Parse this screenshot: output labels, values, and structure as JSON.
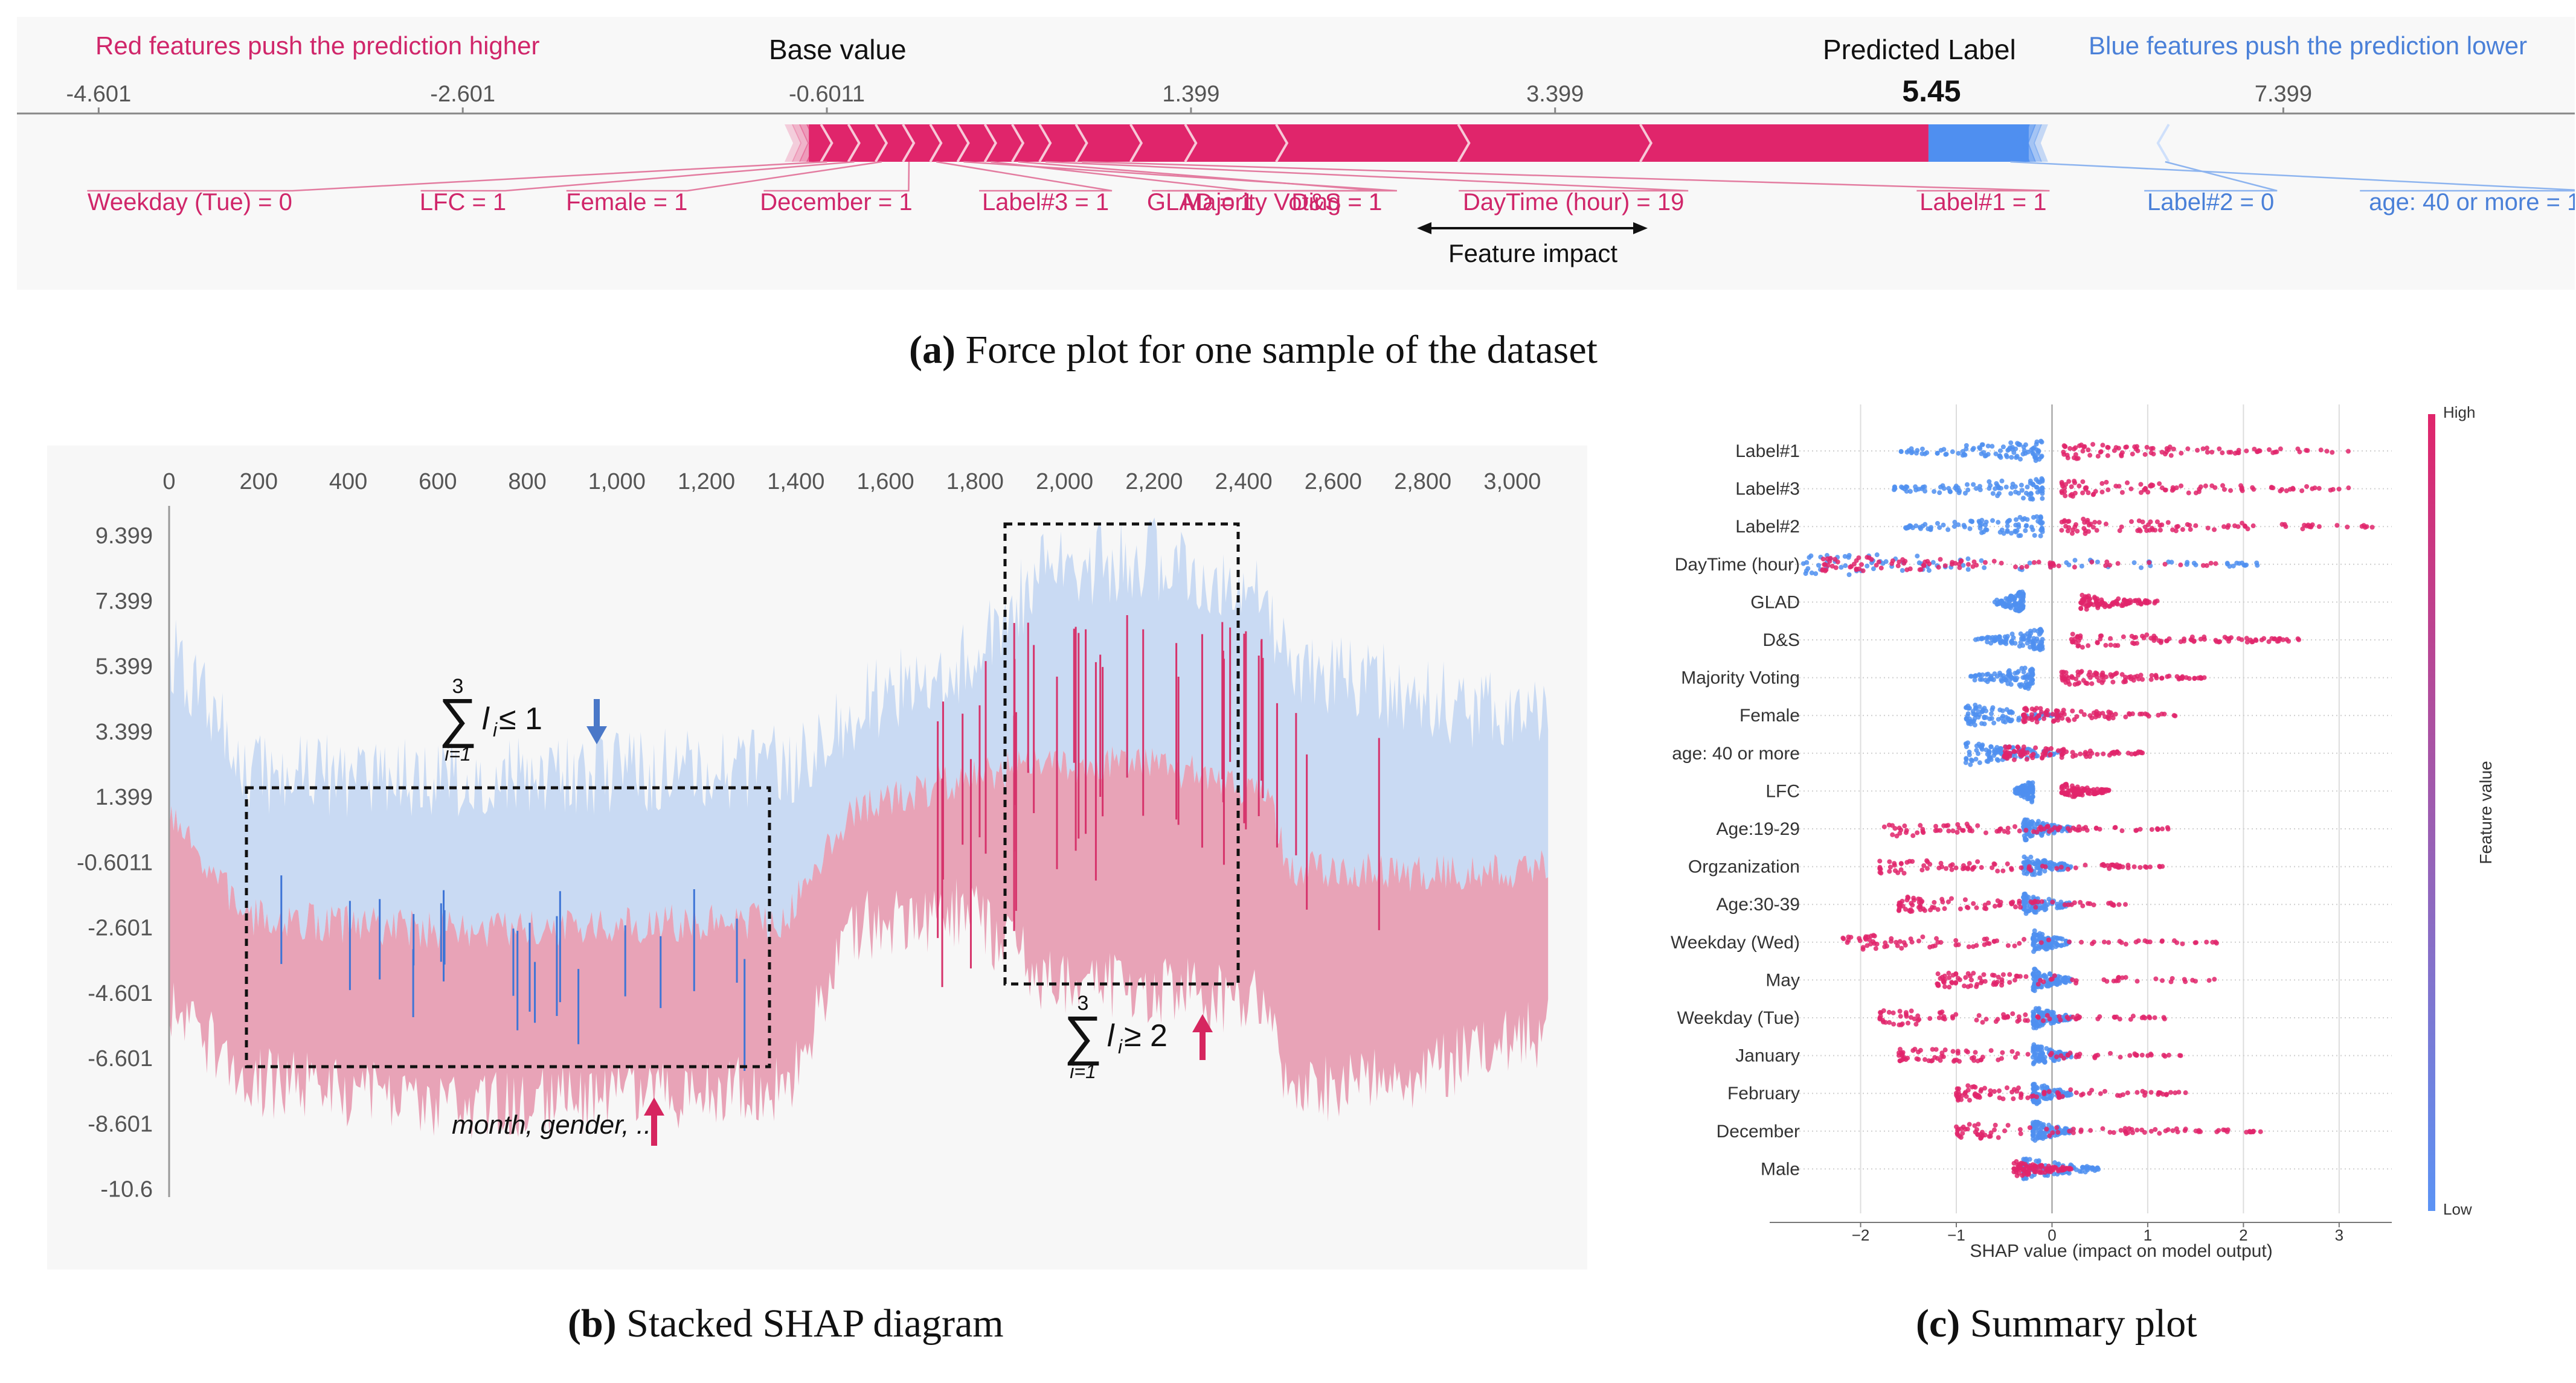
{
  "captions": {
    "a_tag": "(a)",
    "a_text": " Force plot for one sample of the dataset",
    "b_tag": "(b)",
    "b_text": " Stacked SHAP diagram",
    "c_tag": "(c)",
    "c_text": " Summary plot"
  },
  "colors": {
    "red": "#e0256b",
    "blue": "#4f8ff0",
    "light_red": "#e8a3b7",
    "light_blue": "#c9daf3"
  },
  "chart_data": [
    {
      "type": "force",
      "header_left": "Red features push the prediction higher",
      "header_base": "Base value",
      "header_pred": "Predicted Label",
      "header_right": "Blue features push the prediction lower",
      "predicted_value": "5.45",
      "predicted_num": 5.45,
      "x_ticks": [
        -4.601,
        -2.601,
        -0.6011,
        1.399,
        3.399,
        7.399
      ],
      "x_tick_labels": [
        "-4.601",
        "-2.601",
        "-0.6011",
        "1.399",
        "3.399",
        "7.399"
      ],
      "xlim": [
        -5.05,
        9.0
      ],
      "red_start": -0.8,
      "blue_end": 6.1,
      "red_segments": [
        -0.6,
        -0.45,
        -0.3,
        -0.15,
        0.0,
        0.15,
        0.3,
        0.45,
        0.6,
        0.8,
        1.1,
        1.4,
        1.9,
        2.9,
        3.9,
        5.45
      ],
      "red_labels": [
        {
          "text": "Weekday (Tue) = 0",
          "x": -4.1
        },
        {
          "text": "LFC = 1",
          "x": -2.6
        },
        {
          "text": "Female = 1",
          "x": -1.7
        },
        {
          "text": "December = 1",
          "x": -0.55
        },
        {
          "text": "Label#3 = 1",
          "x": 0.6
        },
        {
          "text": "Majority Voting = 1",
          "x": 1.9
        },
        {
          "text": "GLAD = 1",
          "x": 1.45
        },
        {
          "text": "D&S = 1",
          "x": 2.2
        },
        {
          "text": "DayTime (hour) = 19",
          "x": 3.5
        },
        {
          "text": "Label#1 = 1",
          "x": 5.75
        }
      ],
      "blue_labels": [
        {
          "text": "Label#2 = 0",
          "x": 7.0
        },
        {
          "text": "age: 40 or more = 1",
          "x": 8.45
        }
      ],
      "impact_label": "Feature impact"
    },
    {
      "type": "area",
      "x_ticks": [
        0,
        200,
        400,
        600,
        800,
        1000,
        1200,
        1400,
        1600,
        1800,
        2000,
        2200,
        2400,
        2600,
        2800,
        3000
      ],
      "x_tick_labels": [
        "0",
        "200",
        "400",
        "600",
        "800",
        "1,000",
        "1,200",
        "1,400",
        "1,600",
        "1,800",
        "2,000",
        "2,200",
        "2,400",
        "2,600",
        "2,800",
        "3,000"
      ],
      "y_ticks": [
        9.399,
        7.399,
        5.399,
        3.399,
        1.399,
        -0.6011,
        -2.601,
        -4.601,
        -6.601,
        -8.601,
        -10.6
      ],
      "y_tick_labels": [
        "9.399",
        "7.399",
        "5.399",
        "3.399",
        "1.399",
        "-0.6011",
        "-2.601",
        "-4.601",
        "-6.601",
        "-8.601",
        "-10.6"
      ],
      "xlim": [
        0,
        3100
      ],
      "ylim": [
        -11.4,
        10.4
      ],
      "series": [
        {
          "name": "",
          "color": "#c9daf3",
          "x": [
            0,
            180,
            700,
            1380,
            1520,
            1780,
            1950,
            2200,
            2450,
            2500,
            2800,
            3100
          ],
          "y": [
            5.4,
            1.6,
            1.5,
            1.8,
            3.5,
            5.0,
            7.8,
            8.2,
            7.0,
            5.0,
            4.0,
            3.0
          ]
        },
        {
          "name": "",
          "color": "#e8a3b7",
          "x": [
            0,
            180,
            700,
            1380,
            1520,
            1780,
            1950,
            2200,
            2450,
            2500,
            2800,
            3100
          ],
          "y": [
            -4.0,
            -6.2,
            -7.0,
            -6.4,
            -1.5,
            -1.0,
            -3.0,
            -3.4,
            -3.8,
            -6.5,
            -6.0,
            -4.5
          ]
        }
      ],
      "annotations": {
        "box1_text": "month, gender, ...",
        "sum_top": "3",
        "sum_bottom": "i=1",
        "box1_cond": "l",
        "box1_sub": "i",
        "box1_rel": " ≤ 1",
        "box2_cond": "l",
        "box2_sub": "i",
        "box2_rel": " ≥ 2"
      }
    },
    {
      "type": "scatter",
      "features": [
        "Label#1",
        "Label#3",
        "Label#2",
        "DayTime (hour)",
        "GLAD",
        "D&S",
        "Majority Voting",
        "Female",
        "age: 40 or more",
        "LFC",
        "Age:19-29",
        "Orgzanization",
        "Age:30-39",
        "Weekday (Wed)",
        "May",
        "Weekday (Tue)",
        "January",
        "February",
        "December",
        "Male"
      ],
      "x_ticks": [
        -2,
        -1,
        0,
        1,
        2,
        3
      ],
      "x_tick_labels": [
        "−2",
        "−1",
        "0",
        "1",
        "2",
        "3"
      ],
      "xlim": [
        -2.95,
        3.55
      ],
      "xlabel": "SHAP value (impact on model output)",
      "colorbar_label": "Feature value",
      "colorbar_high": "High",
      "colorbar_low": "Low",
      "ranges": [
        {
          "blue": [
            -1.6,
            -0.1
          ],
          "red": [
            0.1,
            3.1
          ]
        },
        {
          "blue": [
            -1.7,
            -0.1
          ],
          "red": [
            0.1,
            3.3
          ]
        },
        {
          "blue": [
            -1.6,
            -0.1
          ],
          "red": [
            0.1,
            3.4
          ]
        },
        {
          "blue": [
            -2.6,
            2.2
          ],
          "red": [
            -2.4,
            1.8
          ]
        },
        {
          "blue": [
            -0.6,
            -0.3
          ],
          "red": [
            0.3,
            1.1
          ]
        },
        {
          "blue": [
            -0.8,
            -0.1
          ],
          "red": [
            0.2,
            2.6
          ]
        },
        {
          "blue": [
            -0.9,
            -0.2
          ],
          "red": [
            0.1,
            1.6
          ]
        },
        {
          "blue": [
            -0.9,
            0.1
          ],
          "red": [
            -0.3,
            1.3
          ]
        },
        {
          "blue": [
            -0.9,
            0.1
          ],
          "red": [
            -0.5,
            1.0
          ]
        },
        {
          "blue": [
            -0.4,
            -0.2
          ],
          "red": [
            0.1,
            0.6
          ]
        },
        {
          "blue": [
            -0.3,
            0.2
          ],
          "red": [
            -1.8,
            1.3
          ]
        },
        {
          "blue": [
            -0.3,
            0.2
          ],
          "red": [
            -1.8,
            1.2
          ]
        },
        {
          "blue": [
            -0.3,
            0.2
          ],
          "red": [
            -1.6,
            0.8
          ]
        },
        {
          "blue": [
            -0.2,
            0.2
          ],
          "red": [
            -2.2,
            1.8
          ]
        },
        {
          "blue": [
            -0.2,
            0.2
          ],
          "red": [
            -1.2,
            1.7
          ]
        },
        {
          "blue": [
            -0.2,
            0.2
          ],
          "red": [
            -1.8,
            1.2
          ]
        },
        {
          "blue": [
            -0.2,
            0.2
          ],
          "red": [
            -1.6,
            1.4
          ]
        },
        {
          "blue": [
            -0.2,
            0.2
          ],
          "red": [
            -1.0,
            1.4
          ]
        },
        {
          "blue": [
            -0.2,
            0.2
          ],
          "red": [
            -1.0,
            2.2
          ]
        },
        {
          "blue": [
            -0.3,
            0.5
          ],
          "red": [
            -0.4,
            0.2
          ]
        }
      ]
    }
  ]
}
